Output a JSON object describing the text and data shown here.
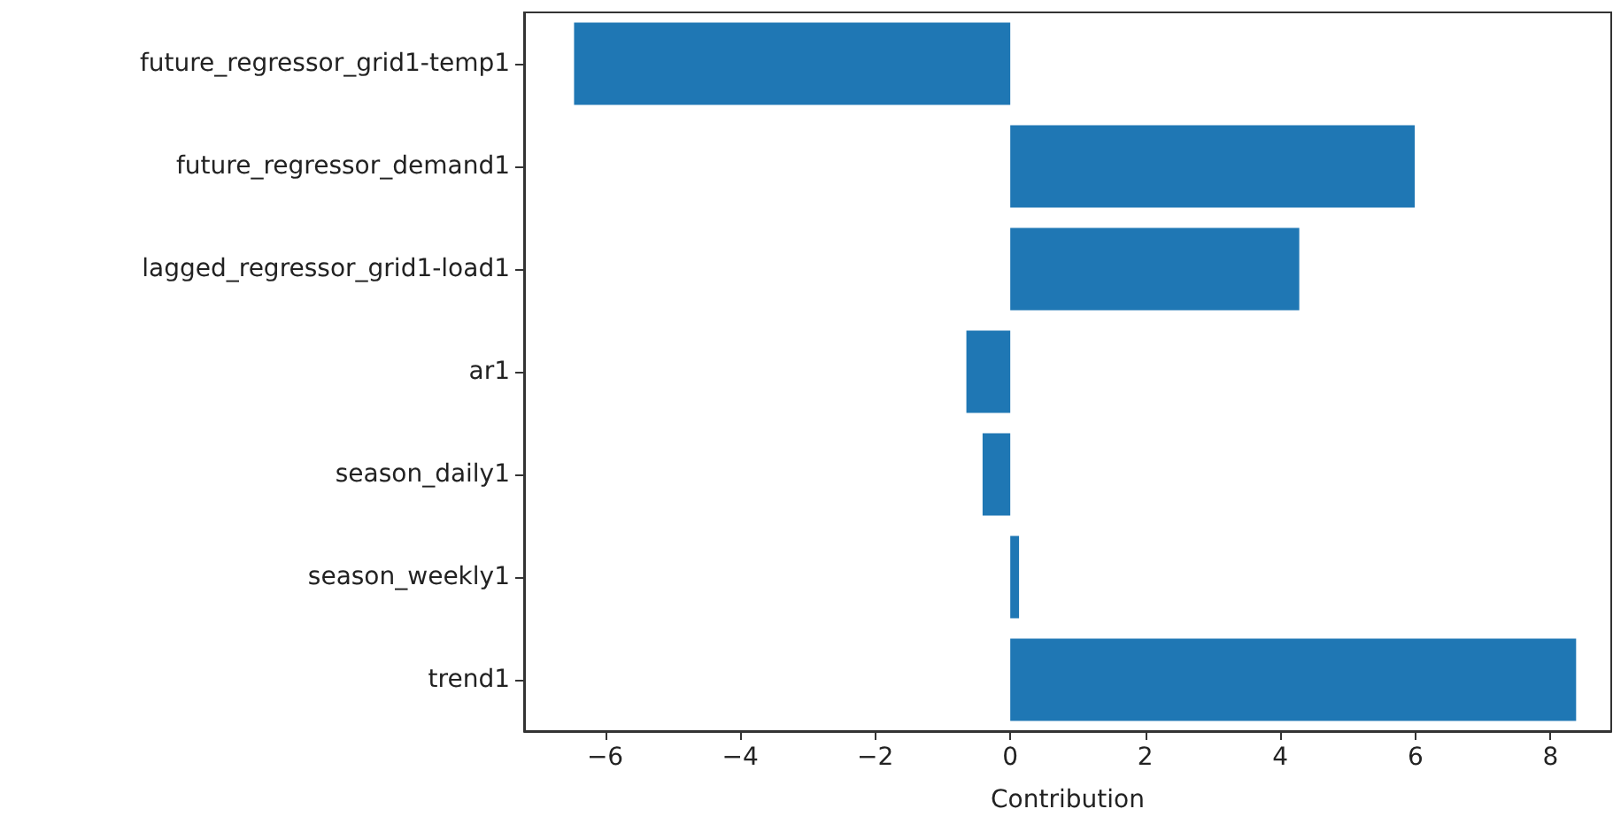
{
  "chart_data": {
    "type": "bar",
    "orientation": "horizontal",
    "xlabel": "Contribution",
    "categories": [
      "future_regressor_grid1-temp1",
      "future_regressor_demand1",
      "lagged_regressor_grid1-load1",
      "ar1",
      "season_daily1",
      "season_weekly1",
      "trend1"
    ],
    "values": [
      -6.46,
      5.99,
      4.28,
      -0.65,
      -0.41,
      0.13,
      8.38
    ],
    "color": "#1f77b4",
    "xlim": [
      -7.2,
      8.9
    ],
    "xticks": [
      -6,
      -4,
      -2,
      0,
      2,
      4,
      6,
      8
    ]
  }
}
